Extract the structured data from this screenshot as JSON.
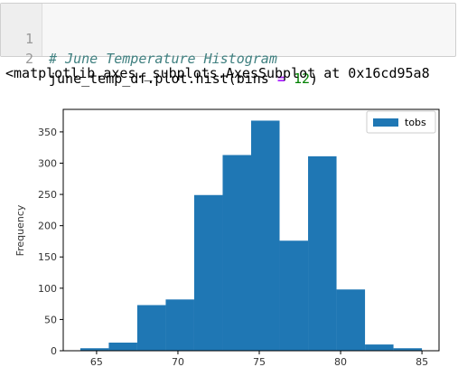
{
  "cell": {
    "line_numbers": [
      "1",
      "2"
    ],
    "comment": "# June Temperature Histogram",
    "code_prefix": "june_temp_df.plot.hist(bins ",
    "code_op": "=",
    "code_space": " ",
    "code_num": "12",
    "code_suffix": ")"
  },
  "output_text": "<matplotlib.axes._subplots.AxesSubplot at 0x16cd95a8",
  "chart_data": {
    "type": "bar",
    "bins": [
      {
        "start": 64.0,
        "end": 65.75,
        "count": 4
      },
      {
        "start": 65.75,
        "end": 67.5,
        "count": 13
      },
      {
        "start": 67.5,
        "end": 69.25,
        "count": 73
      },
      {
        "start": 69.25,
        "end": 71.0,
        "count": 82
      },
      {
        "start": 71.0,
        "end": 72.75,
        "count": 249
      },
      {
        "start": 72.75,
        "end": 74.5,
        "count": 313
      },
      {
        "start": 74.5,
        "end": 76.25,
        "count": 368
      },
      {
        "start": 76.25,
        "end": 78.0,
        "count": 176
      },
      {
        "start": 78.0,
        "end": 79.75,
        "count": 311
      },
      {
        "start": 79.75,
        "end": 81.5,
        "count": 98
      },
      {
        "start": 81.5,
        "end": 83.25,
        "count": 10
      },
      {
        "start": 83.25,
        "end": 85.0,
        "count": 4
      }
    ],
    "xlim": [
      62.95,
      86.05
    ],
    "ylim": [
      0,
      386
    ],
    "xticks": [
      65,
      70,
      75,
      80,
      85
    ],
    "yticks": [
      0,
      50,
      100,
      150,
      200,
      250,
      300,
      350
    ],
    "ylabel": "Frequency",
    "xlabel": "",
    "legend": [
      "tobs"
    ],
    "legend_position": "top-right",
    "bar_color": "#1f77b4",
    "grid": false
  }
}
